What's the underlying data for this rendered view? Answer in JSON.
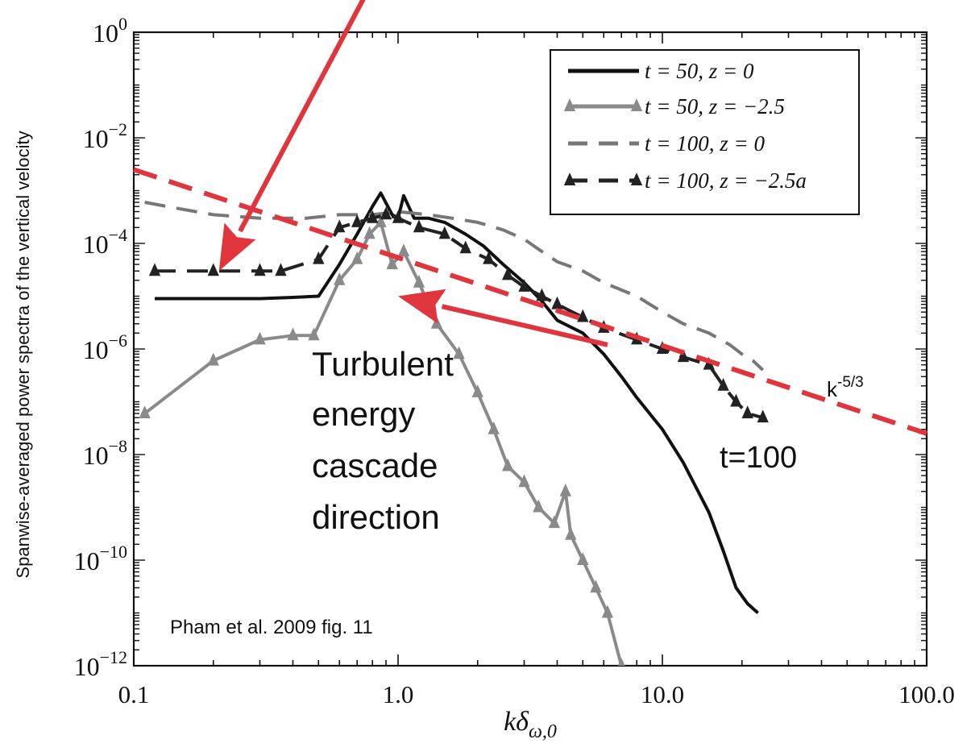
{
  "chart_data": {
    "type": "line",
    "title": "",
    "xlabel": "kδω,0",
    "xlabel_parts": {
      "base": "kδ",
      "sub": "ω,0"
    },
    "ylabel": "Spanwise-averaged power spectra of the vertical velocity",
    "xscale": "log",
    "yscale": "log",
    "xlim": [
      0.1,
      100
    ],
    "ylim": [
      1e-12,
      1
    ],
    "x_ticks": [
      {
        "value": 0.1,
        "label": "0.1"
      },
      {
        "value": 1,
        "label": "1.0"
      },
      {
        "value": 10,
        "label": "10.0"
      },
      {
        "value": 100,
        "label": "100.0"
      }
    ],
    "y_ticks": [
      {
        "value": 1,
        "base": "10",
        "exp": "0"
      },
      {
        "value": 0.01,
        "base": "10",
        "exp": "−2"
      },
      {
        "value": 0.0001,
        "base": "10",
        "exp": "−4"
      },
      {
        "value": 1e-06,
        "base": "10",
        "exp": "−6"
      },
      {
        "value": 1e-08,
        "base": "10",
        "exp": "−8"
      },
      {
        "value": 1e-10,
        "base": "10",
        "exp": "−10"
      },
      {
        "value": 1e-12,
        "base": "10",
        "exp": "−12"
      }
    ],
    "legend_position": "top-right",
    "series": [
      {
        "name": "t = 50, z = 0",
        "color": "#111111",
        "dash": "solid",
        "marker": "none",
        "x": [
          0.12,
          0.2,
          0.3,
          0.4,
          0.5,
          0.6,
          0.7,
          0.8,
          0.86,
          0.95,
          1.0,
          1.05,
          1.15,
          1.3,
          1.5,
          1.8,
          2.1,
          2.5,
          3.0,
          3.5,
          4.0,
          5.0,
          6.0,
          7.0,
          8.0,
          10.0,
          12.0,
          15.0,
          17.0,
          19.0,
          21.0,
          23.0
        ],
        "y": [
          9e-06,
          9e-06,
          9e-06,
          9.5e-06,
          1e-05,
          4e-05,
          0.00015,
          0.0005,
          0.0009,
          0.00035,
          0.0003,
          0.0008,
          0.0003,
          0.0003,
          0.00025,
          0.00015,
          9e-05,
          4e-05,
          1.8e-05,
          8e-06,
          3.5e-06,
          2e-06,
          8e-07,
          3e-07,
          1.2e-07,
          3e-08,
          7e-09,
          8e-10,
          1.5e-10,
          3e-11,
          1.5e-11,
          1e-11
        ]
      },
      {
        "name": "t = 50, z = −2.5",
        "color": "#8a8a8a",
        "dash": "solid",
        "marker": "triangle",
        "x": [
          0.11,
          0.2,
          0.3,
          0.4,
          0.48,
          0.6,
          0.7,
          0.78,
          0.86,
          0.95,
          1.05,
          1.2,
          1.4,
          1.7,
          2.0,
          2.3,
          2.6,
          3.0,
          3.4,
          3.9,
          4.3,
          4.5,
          5.0,
          5.6,
          6.2,
          7.0
        ],
        "y": [
          6e-08,
          6e-07,
          1.5e-06,
          1.8e-06,
          1.8e-06,
          2e-05,
          5e-05,
          0.00015,
          0.00025,
          4e-05,
          7e-05,
          1.8e-05,
          3e-06,
          8e-07,
          1.5e-07,
          3e-08,
          6e-09,
          3e-09,
          1e-09,
          5e-10,
          2e-09,
          3e-10,
          1e-10,
          3e-11,
          1e-11,
          1e-12
        ]
      },
      {
        "name": "t = 100, z = 0",
        "color": "#777777",
        "dash": "dashed",
        "marker": "none",
        "x": [
          0.11,
          0.15,
          0.2,
          0.3,
          0.45,
          0.6,
          0.8,
          1.0,
          1.3,
          1.6,
          2.0,
          2.5,
          3.0,
          3.5,
          4.0,
          5.0,
          6.0,
          8.0,
          10.0,
          12.0,
          15.0,
          18.0,
          20.0,
          22.0,
          24.0
        ],
        "y": [
          0.0006,
          0.00045,
          0.00035,
          0.0003,
          0.0003,
          0.00035,
          0.00035,
          0.0004,
          0.00035,
          0.0003,
          0.00025,
          0.00018,
          0.00012,
          7e-05,
          4.5e-05,
          3e-05,
          1.8e-05,
          1e-05,
          5e-06,
          3e-06,
          2e-06,
          1.2e-06,
          8e-07,
          6e-07,
          4e-07
        ]
      },
      {
        "name": "t = 100, z = −2.5a",
        "color": "#222222",
        "dash": "dashed",
        "marker": "triangle",
        "x": [
          0.12,
          0.2,
          0.3,
          0.36,
          0.5,
          0.6,
          0.7,
          0.8,
          0.9,
          1.0,
          1.2,
          1.5,
          1.8,
          2.2,
          2.6,
          3.0,
          3.5,
          4.0,
          5.0,
          6.0,
          8.0,
          10.0,
          12.0,
          15.0,
          17.0,
          19.0,
          21.0,
          24.0
        ],
        "y": [
          3e-05,
          3e-05,
          3e-05,
          3e-05,
          5e-05,
          0.0002,
          0.00025,
          0.0003,
          0.00035,
          0.0003,
          0.0002,
          0.00015,
          8e-05,
          5e-05,
          2.5e-05,
          1.5e-05,
          1e-05,
          7e-06,
          4e-06,
          2.5e-06,
          1.5e-06,
          1e-06,
          7e-07,
          5e-07,
          2e-07,
          1e-07,
          6e-08,
          5e-08
        ]
      }
    ],
    "reference_line": {
      "label_base": "k",
      "label_exp": "-5/3",
      "color": "#e0353c",
      "x": [
        0.1,
        100
      ],
      "y": [
        0.0025,
        2.5e-08
      ]
    },
    "arrows": [
      {
        "color": "#e0353c",
        "from": [
          0.8,
          9.0
        ],
        "to": [
          0.21,
          3e-05
        ]
      },
      {
        "color": "#e0353c",
        "from": [
          6.2,
          1.2e-06
        ],
        "to": [
          1.0,
          1e-05
        ]
      }
    ],
    "annotations": {
      "cascade": [
        "Turbulent",
        "energy",
        "cascade",
        "direction"
      ],
      "t100": "t=100",
      "citation": "Pham et al. 2009 fig. 11"
    }
  }
}
